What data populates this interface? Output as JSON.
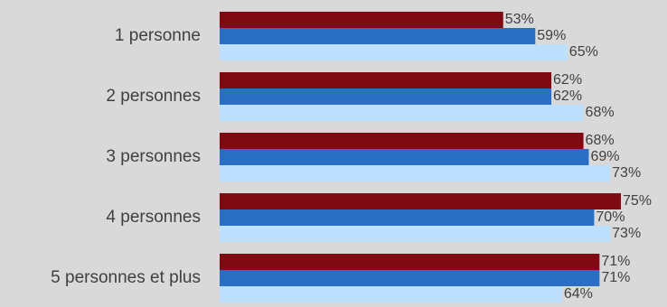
{
  "chart_data": {
    "type": "bar",
    "orientation": "horizontal",
    "categories": [
      "1 personne",
      "2 personnes",
      "3 personnes",
      "4 personnes",
      "5 personnes et plus"
    ],
    "series": [
      {
        "values": [
          53,
          62,
          68,
          75,
          71
        ],
        "color": "#7f0a14",
        "labels": [
          "53%",
          "62%",
          "68%",
          "75%",
          "71%"
        ]
      },
      {
        "values": [
          59,
          62,
          69,
          70,
          71
        ],
        "color": "#2a6fc4",
        "labels": [
          "59%",
          "62%",
          "69%",
          "70%",
          "71%"
        ]
      },
      {
        "values": [
          65,
          68,
          73,
          73,
          64
        ],
        "color": "#bde0ff",
        "labels": [
          "65%",
          "68%",
          "73%",
          "73%",
          "64%"
        ]
      }
    ],
    "xlim": [
      0,
      100
    ],
    "legend": "none",
    "grid": false,
    "title": "",
    "xlabel": "",
    "ylabel": ""
  }
}
